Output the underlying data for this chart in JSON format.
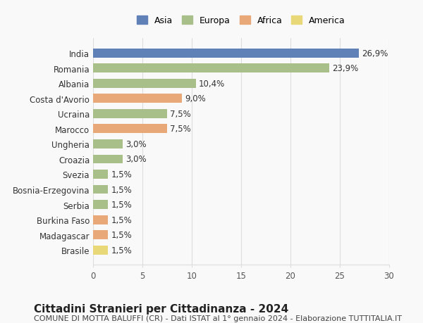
{
  "countries": [
    "India",
    "Romania",
    "Albania",
    "Costa d'Avorio",
    "Ucraina",
    "Marocco",
    "Ungheria",
    "Croazia",
    "Svezia",
    "Bosnia-Erzegovina",
    "Serbia",
    "Burkina Faso",
    "Madagascar",
    "Brasile"
  ],
  "values": [
    26.9,
    23.9,
    10.4,
    9.0,
    7.5,
    7.5,
    3.0,
    3.0,
    1.5,
    1.5,
    1.5,
    1.5,
    1.5,
    1.5
  ],
  "labels": [
    "26,9%",
    "23,9%",
    "10,4%",
    "9,0%",
    "7,5%",
    "7,5%",
    "3,0%",
    "3,0%",
    "1,5%",
    "1,5%",
    "1,5%",
    "1,5%",
    "1,5%",
    "1,5%"
  ],
  "continents": [
    "Asia",
    "Europa",
    "Europa",
    "Africa",
    "Europa",
    "Africa",
    "Europa",
    "Europa",
    "Europa",
    "Europa",
    "Europa",
    "Africa",
    "Africa",
    "America"
  ],
  "continent_colors": {
    "Asia": "#6080b8",
    "Europa": "#a8bf8a",
    "Africa": "#e8a878",
    "America": "#e8d878"
  },
  "legend_order": [
    "Asia",
    "Europa",
    "Africa",
    "America"
  ],
  "title": "Cittadini Stranieri per Cittadinanza - 2024",
  "subtitle": "COMUNE DI MOTTA BALUFFI (CR) - Dati ISTAT al 1° gennaio 2024 - Elaborazione TUTTITALIA.IT",
  "xlim": [
    0,
    30
  ],
  "xticks": [
    0,
    5,
    10,
    15,
    20,
    25,
    30
  ],
  "background_color": "#f9f9f9",
  "grid_color": "#dddddd",
  "bar_height": 0.6,
  "label_fontsize": 8.5,
  "title_fontsize": 11,
  "subtitle_fontsize": 8,
  "tick_fontsize": 8.5,
  "legend_fontsize": 9
}
